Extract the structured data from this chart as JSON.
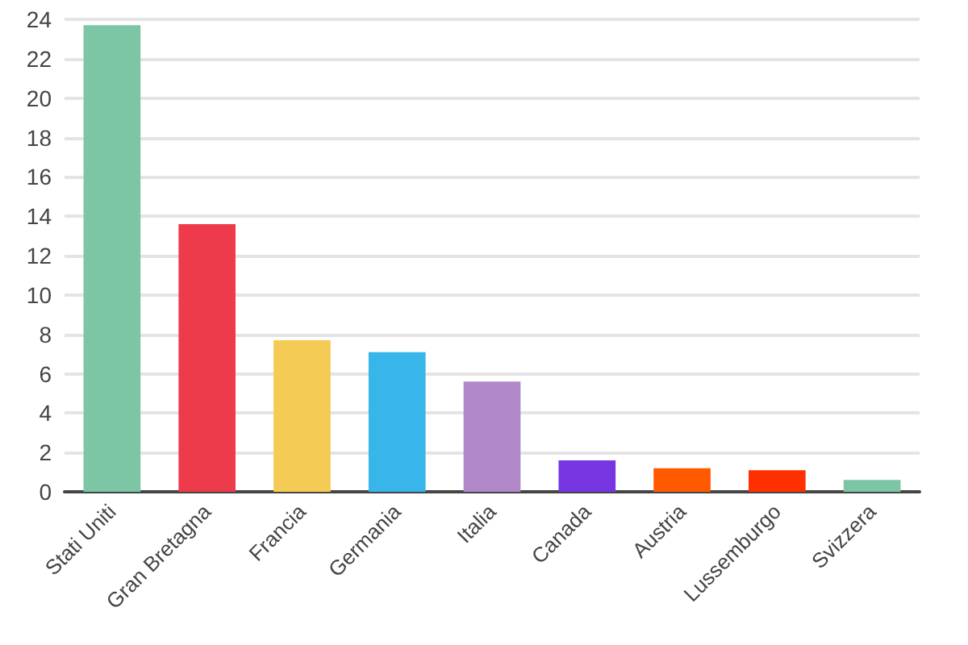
{
  "chart_data": {
    "type": "bar",
    "categories": [
      "Stati Uniti",
      "Gran Bretagna",
      "Francia",
      "Germania",
      "Italia",
      "Canada",
      "Austria",
      "Lussemburgo",
      "Svizzera"
    ],
    "values": [
      23.7,
      13.6,
      7.7,
      7.1,
      5.6,
      1.6,
      1.2,
      1.1,
      0.6
    ],
    "colors": [
      "#7dc6a5",
      "#ee3b4b",
      "#f4cb55",
      "#38b6ea",
      "#b088c9",
      "#7736e2",
      "#ff5a00",
      "#ff3000",
      "#7dc6a5"
    ],
    "ylim": [
      0,
      24
    ],
    "yticks": [
      0,
      2,
      4,
      6,
      8,
      10,
      12,
      14,
      16,
      18,
      20,
      22,
      24
    ],
    "grid": "y"
  }
}
